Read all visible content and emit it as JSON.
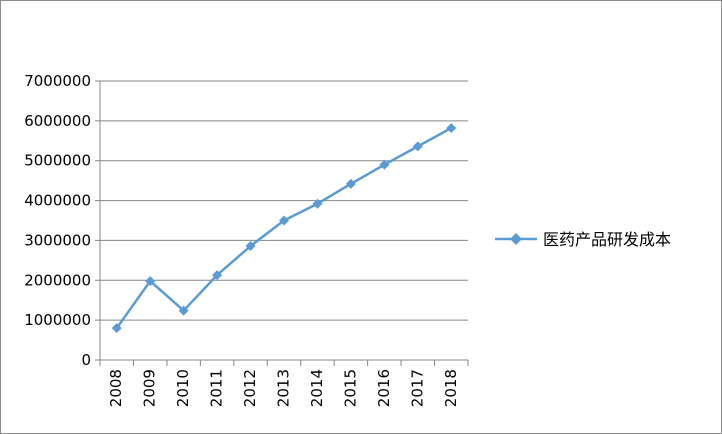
{
  "chart_data": {
    "type": "line",
    "title": "",
    "xlabel": "",
    "ylabel": "",
    "categories": [
      "2008",
      "2009",
      "2010",
      "2011",
      "2012",
      "2013",
      "2014",
      "2015",
      "2016",
      "2017",
      "2018"
    ],
    "series": [
      {
        "name": "医药产品研发成本",
        "color": "#5b9bd5",
        "marker": "diamond",
        "values": [
          800000,
          1980000,
          1240000,
          2130000,
          2860000,
          3500000,
          3920000,
          4420000,
          4900000,
          5360000,
          5820000
        ]
      }
    ],
    "ylim": [
      0,
      7000000
    ],
    "yticks": [
      "0",
      "1000000",
      "2000000",
      "3000000",
      "4000000",
      "5000000",
      "6000000",
      "7000000"
    ],
    "grid": true,
    "legend_position": "right"
  }
}
